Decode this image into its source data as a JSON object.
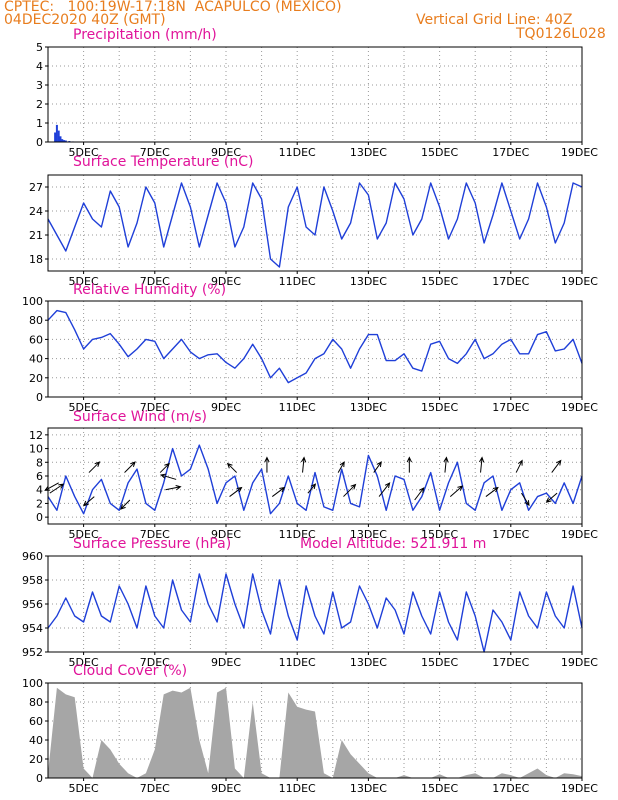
{
  "header": {
    "line1_left": "CPTEC:   100:19W-17:18N  ACAPULCO (MEXICO)",
    "line2_left": "04DEC2020 40Z (GMT)",
    "line1_right": "Vertical Grid Line: 40Z",
    "line2_right": "TQ0126L028"
  },
  "colors": {
    "header": "#e87d1e",
    "title": "#e0149a",
    "line": "#1f3fd8",
    "cloud": "#a6a6a6",
    "grid": "#9a9a9a"
  },
  "x_tick_labels": [
    "5DEC",
    "7DEC",
    "9DEC",
    "11DEC",
    "13DEC",
    "15DEC",
    "17DEC",
    "19DEC"
  ],
  "chart_data": [
    {
      "id": "precip",
      "type": "bar",
      "title": "Precipitation (mm/h)",
      "ylim": [
        0,
        5
      ],
      "yticks": [
        0,
        1,
        2,
        3,
        4,
        5
      ],
      "xlim_days": [
        4.0,
        19.0
      ],
      "x": [
        4.2,
        4.25,
        4.3,
        4.35,
        4.4,
        4.45,
        4.5,
        4.6,
        4.7
      ],
      "values": [
        0.5,
        0.9,
        0.6,
        0.3,
        0.15,
        0.1,
        0.08,
        0.05,
        0.03
      ]
    },
    {
      "id": "temp",
      "type": "line",
      "title": "Surface Temperature (nC)",
      "ylim": [
        16.5,
        28.5
      ],
      "yticks": [
        18,
        21,
        24,
        27
      ],
      "x": [
        4.0,
        4.25,
        4.5,
        4.75,
        5.0,
        5.25,
        5.5,
        5.75,
        6.0,
        6.25,
        6.5,
        6.75,
        7.0,
        7.25,
        7.5,
        7.75,
        8.0,
        8.25,
        8.5,
        8.75,
        9.0,
        9.25,
        9.5,
        9.75,
        10.0,
        10.25,
        10.5,
        10.75,
        11.0,
        11.25,
        11.5,
        11.75,
        12.0,
        12.25,
        12.5,
        12.75,
        13.0,
        13.25,
        13.5,
        13.75,
        14.0,
        14.25,
        14.5,
        14.75,
        15.0,
        15.25,
        15.5,
        15.75,
        16.0,
        16.25,
        16.5,
        16.75,
        17.0,
        17.25,
        17.5,
        17.75,
        18.0,
        18.25,
        18.5,
        18.75,
        19.0
      ],
      "values": [
        23.0,
        21.0,
        19.0,
        22.0,
        25.0,
        23.0,
        22.0,
        26.5,
        24.5,
        19.5,
        22.5,
        27.0,
        25.0,
        19.5,
        23.5,
        27.5,
        24.5,
        19.5,
        23.5,
        27.5,
        25.0,
        19.5,
        22.0,
        27.5,
        25.5,
        18.0,
        17.0,
        24.5,
        27.0,
        22.0,
        21.0,
        27.0,
        24.0,
        20.5,
        22.5,
        27.5,
        26.0,
        20.5,
        22.5,
        27.5,
        25.5,
        21.0,
        23.0,
        27.5,
        24.5,
        20.5,
        23.0,
        27.5,
        25.0,
        20.0,
        23.5,
        27.5,
        24.0,
        20.5,
        23.0,
        27.5,
        24.5,
        20.0,
        22.5,
        27.5,
        27.0
      ]
    },
    {
      "id": "rh",
      "type": "line",
      "title": "Relative Humidity (%)",
      "ylim": [
        0,
        100
      ],
      "yticks": [
        0,
        20,
        40,
        60,
        80,
        100
      ],
      "x": [
        4.0,
        4.25,
        4.5,
        4.75,
        5.0,
        5.25,
        5.5,
        5.75,
        6.0,
        6.25,
        6.5,
        6.75,
        7.0,
        7.25,
        7.5,
        7.75,
        8.0,
        8.25,
        8.5,
        8.75,
        9.0,
        9.25,
        9.5,
        9.75,
        10.0,
        10.25,
        10.5,
        10.75,
        11.0,
        11.25,
        11.5,
        11.75,
        12.0,
        12.25,
        12.5,
        12.75,
        13.0,
        13.25,
        13.5,
        13.75,
        14.0,
        14.25,
        14.5,
        14.75,
        15.0,
        15.25,
        15.5,
        15.75,
        16.0,
        16.25,
        16.5,
        16.75,
        17.0,
        17.25,
        17.5,
        17.75,
        18.0,
        18.25,
        18.5,
        18.75,
        19.0
      ],
      "values": [
        80.0,
        90.0,
        88.0,
        70.0,
        50.0,
        60.0,
        62.0,
        66.0,
        55.0,
        42.0,
        50.0,
        60.0,
        58.0,
        40.0,
        50.0,
        60.0,
        47.0,
        40.0,
        44.0,
        45.0,
        36.0,
        30.0,
        40.0,
        55.0,
        40.0,
        20.0,
        30.0,
        15.0,
        20.0,
        25.0,
        40.0,
        45.0,
        60.0,
        50.0,
        30.0,
        50.0,
        65.0,
        65.0,
        38.0,
        38.0,
        45.0,
        30.0,
        27.0,
        55.0,
        58.0,
        40.0,
        35.0,
        45.0,
        60.0,
        40.0,
        45.0,
        55.0,
        60.0,
        45.0,
        45.0,
        65.0,
        68.0,
        48.0,
        50.0,
        60.0,
        35.0
      ]
    },
    {
      "id": "wind",
      "type": "line",
      "title": "Surface Wind (m/s)",
      "ylim": [
        -1,
        13
      ],
      "yticks": [
        0,
        2,
        4,
        6,
        8,
        10,
        12
      ],
      "x": [
        4.0,
        4.25,
        4.5,
        4.75,
        5.0,
        5.25,
        5.5,
        5.75,
        6.0,
        6.25,
        6.5,
        6.75,
        7.0,
        7.25,
        7.5,
        7.75,
        8.0,
        8.25,
        8.5,
        8.75,
        9.0,
        9.25,
        9.5,
        9.75,
        10.0,
        10.25,
        10.5,
        10.75,
        11.0,
        11.25,
        11.5,
        11.75,
        12.0,
        12.25,
        12.5,
        12.75,
        13.0,
        13.25,
        13.5,
        13.75,
        14.0,
        14.25,
        14.5,
        14.75,
        15.0,
        15.25,
        15.5,
        15.75,
        16.0,
        16.25,
        16.5,
        16.75,
        17.0,
        17.25,
        17.5,
        17.75,
        18.0,
        18.25,
        18.5,
        18.75,
        19.0
      ],
      "values": [
        3.0,
        1.0,
        6.0,
        3.0,
        0.5,
        4.0,
        5.5,
        2.0,
        1.0,
        5.0,
        7.0,
        2.0,
        1.0,
        5.0,
        10.0,
        6.0,
        7.0,
        10.5,
        7.0,
        2.0,
        5.0,
        6.0,
        1.0,
        5.0,
        7.0,
        0.5,
        2.0,
        6.0,
        2.0,
        1.0,
        6.5,
        1.5,
        1.0,
        7.0,
        2.0,
        1.5,
        9.0,
        6.0,
        1.0,
        6.0,
        5.5,
        1.0,
        3.0,
        6.5,
        1.0,
        5.0,
        8.0,
        2.0,
        1.0,
        5.0,
        6.0,
        1.0,
        4.0,
        5.0,
        1.0,
        3.0,
        3.5,
        2.0,
        5.0,
        2.0,
        6.0
      ],
      "arrows": [
        {
          "x": 4.05,
          "y": 3.5,
          "u": 0.9,
          "v": 0.6
        },
        {
          "x": 4.3,
          "y": 5.0,
          "u": -0.9,
          "v": -0.5
        },
        {
          "x": 5.15,
          "y": 6.5,
          "u": 0.7,
          "v": 0.7
        },
        {
          "x": 5.3,
          "y": 3.0,
          "u": -0.7,
          "v": -0.6
        },
        {
          "x": 6.15,
          "y": 6.5,
          "u": 0.7,
          "v": 0.7
        },
        {
          "x": 6.3,
          "y": 2.5,
          "u": -0.6,
          "v": -0.6
        },
        {
          "x": 7.15,
          "y": 6.5,
          "u": 0.6,
          "v": 0.6
        },
        {
          "x": 7.3,
          "y": 4.0,
          "u": 1.0,
          "v": 0.2
        },
        {
          "x": 7.6,
          "y": 5.5,
          "u": -1.0,
          "v": 0.3
        },
        {
          "x": 9.1,
          "y": 3.0,
          "u": 0.8,
          "v": 0.6
        },
        {
          "x": 9.3,
          "y": 6.5,
          "u": -0.6,
          "v": 0.6
        },
        {
          "x": 10.15,
          "y": 6.5,
          "u": 0.0,
          "v": 1.0
        },
        {
          "x": 10.3,
          "y": 3.0,
          "u": 0.8,
          "v": 0.6
        },
        {
          "x": 11.15,
          "y": 6.5,
          "u": 0.1,
          "v": 1.0
        },
        {
          "x": 11.3,
          "y": 3.5,
          "u": 0.5,
          "v": 0.6
        },
        {
          "x": 12.15,
          "y": 6.5,
          "u": 0.4,
          "v": 0.7
        },
        {
          "x": 12.3,
          "y": 3.0,
          "u": 0.8,
          "v": 0.8
        },
        {
          "x": 13.15,
          "y": 6.5,
          "u": 0.5,
          "v": 0.7
        },
        {
          "x": 13.3,
          "y": 3.0,
          "u": 0.7,
          "v": 0.9
        },
        {
          "x": 14.15,
          "y": 6.5,
          "u": 0.0,
          "v": 1.0
        },
        {
          "x": 14.3,
          "y": 2.5,
          "u": 0.6,
          "v": 0.8
        },
        {
          "x": 15.15,
          "y": 6.5,
          "u": 0.1,
          "v": 1.0
        },
        {
          "x": 15.3,
          "y": 3.0,
          "u": 0.8,
          "v": 0.7
        },
        {
          "x": 16.15,
          "y": 6.5,
          "u": 0.1,
          "v": 1.0
        },
        {
          "x": 16.3,
          "y": 3.0,
          "u": 0.8,
          "v": 0.6
        },
        {
          "x": 17.15,
          "y": 6.5,
          "u": 0.4,
          "v": 0.8
        },
        {
          "x": 17.3,
          "y": 3.5,
          "u": 0.5,
          "v": -0.8
        },
        {
          "x": 18.15,
          "y": 6.5,
          "u": 0.6,
          "v": 0.8
        },
        {
          "x": 18.3,
          "y": 3.5,
          "u": -0.7,
          "v": -0.6
        }
      ]
    },
    {
      "id": "pressure",
      "type": "line",
      "title": "Surface Pressure (hPa)",
      "extra_label": "Model Altitude: 521.911 m",
      "ylim": [
        952,
        960
      ],
      "yticks": [
        952,
        954,
        956,
        958,
        960
      ],
      "x": [
        4.0,
        4.25,
        4.5,
        4.75,
        5.0,
        5.25,
        5.5,
        5.75,
        6.0,
        6.25,
        6.5,
        6.75,
        7.0,
        7.25,
        7.5,
        7.75,
        8.0,
        8.25,
        8.5,
        8.75,
        9.0,
        9.25,
        9.5,
        9.75,
        10.0,
        10.25,
        10.5,
        10.75,
        11.0,
        11.25,
        11.5,
        11.75,
        12.0,
        12.25,
        12.5,
        12.75,
        13.0,
        13.25,
        13.5,
        13.75,
        14.0,
        14.25,
        14.5,
        14.75,
        15.0,
        15.25,
        15.5,
        15.75,
        16.0,
        16.25,
        16.5,
        16.75,
        17.0,
        17.25,
        17.5,
        17.75,
        18.0,
        18.25,
        18.5,
        18.75,
        19.0
      ],
      "values": [
        954.0,
        955.0,
        956.5,
        955.0,
        954.5,
        957.0,
        955.0,
        954.5,
        957.5,
        956.0,
        954.0,
        957.5,
        955.0,
        954.0,
        958.0,
        955.5,
        954.5,
        958.5,
        956.0,
        954.5,
        958.5,
        956.0,
        954.0,
        958.5,
        955.5,
        953.5,
        958.0,
        955.0,
        953.0,
        957.5,
        955.0,
        953.5,
        957.0,
        954.0,
        954.5,
        957.5,
        956.0,
        954.0,
        956.5,
        955.5,
        953.5,
        957.0,
        955.0,
        953.5,
        957.0,
        954.5,
        953.0,
        957.0,
        955.0,
        952.0,
        955.5,
        954.5,
        953.0,
        957.0,
        955.0,
        954.0,
        957.0,
        955.0,
        954.0,
        957.5,
        954.0
      ]
    },
    {
      "id": "cloud",
      "type": "bar",
      "title": "Cloud Cover (%)",
      "ylim": [
        0,
        100
      ],
      "yticks": [
        0,
        20,
        40,
        60,
        80,
        100
      ],
      "x": [
        4.0,
        4.25,
        4.5,
        4.75,
        5.0,
        5.25,
        5.5,
        5.75,
        6.0,
        6.25,
        6.5,
        6.75,
        7.0,
        7.25,
        7.5,
        7.75,
        8.0,
        8.25,
        8.5,
        8.75,
        9.0,
        9.25,
        9.5,
        9.75,
        10.0,
        10.25,
        10.5,
        10.75,
        11.0,
        11.25,
        11.5,
        11.75,
        12.0,
        12.25,
        12.5,
        12.75,
        13.0,
        13.25,
        13.5,
        13.75,
        14.0,
        14.25,
        14.5,
        14.75,
        15.0,
        15.25,
        15.5,
        15.75,
        16.0,
        16.25,
        16.5,
        16.75,
        17.0,
        17.25,
        17.5,
        17.75,
        18.0,
        18.25,
        18.5,
        18.75,
        19.0
      ],
      "values": [
        5.0,
        95.0,
        88.0,
        85.0,
        10.0,
        0.0,
        40.0,
        30.0,
        15.0,
        5.0,
        0.0,
        5.0,
        30.0,
        88.0,
        92.0,
        90.0,
        95.0,
        40.0,
        5.0,
        90.0,
        95.0,
        10.0,
        0.0,
        80.0,
        5.0,
        0.0,
        0.0,
        90.0,
        75.0,
        72.0,
        70.0,
        5.0,
        0.0,
        40.0,
        25.0,
        15.0,
        5.0,
        0.0,
        0.0,
        0.0,
        3.0,
        0.0,
        0.0,
        0.0,
        4.0,
        0.0,
        0.0,
        3.0,
        5.0,
        0.0,
        0.0,
        5.0,
        3.0,
        0.0,
        5.0,
        10.0,
        3.0,
        0.0,
        5.0,
        4.0,
        2.0
      ]
    }
  ]
}
